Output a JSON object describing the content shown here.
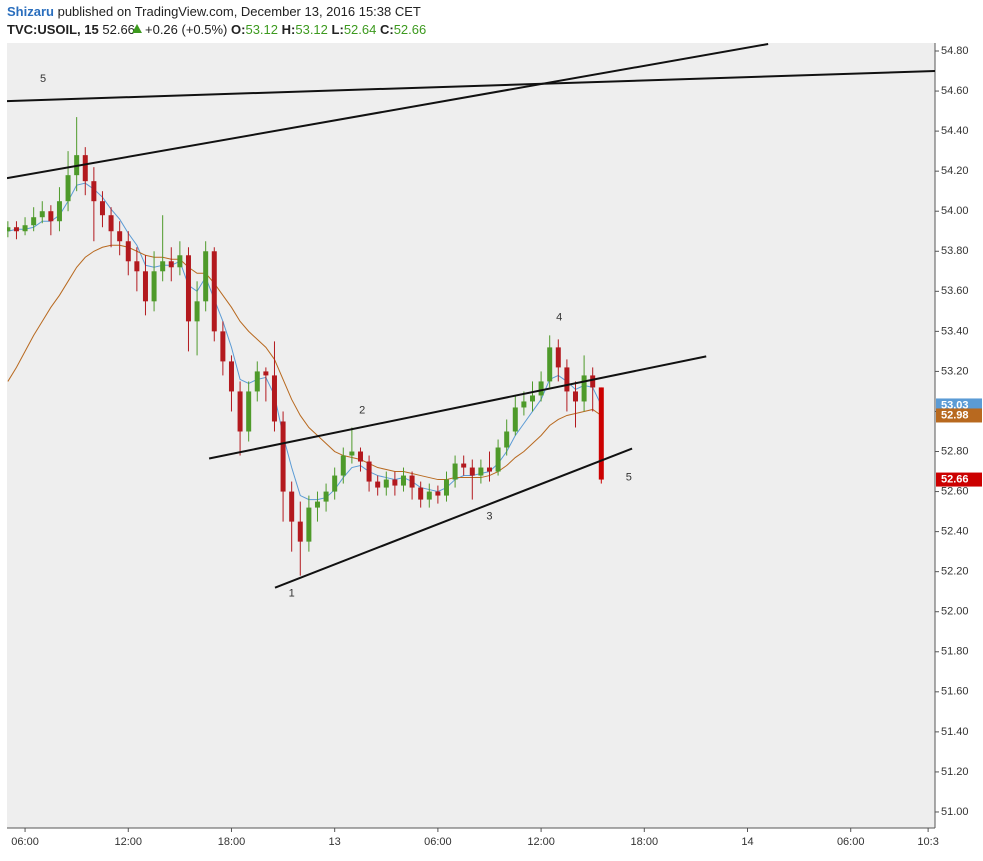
{
  "header": {
    "author": "Shizaru",
    "published": "published on TradingView.com, December 13, 2016 15:38 CET",
    "symbol": "TVC:USOIL, 15",
    "last": "52.66",
    "change": "+0.26 (+0.5%)",
    "o_label": "O:",
    "o": "53.12",
    "h_label": "H:",
    "h": "53.12",
    "l_label": "L:",
    "l": "52.64",
    "c_label": "C:",
    "c": "52.66"
  },
  "chart_data": {
    "type": "candlestick",
    "x": [
      5,
      5.5,
      6,
      6.5,
      7,
      7.5,
      8,
      8.5,
      9,
      9.5,
      10,
      10.5,
      11,
      11.5,
      12,
      12.5,
      13,
      13.5,
      14,
      14.5,
      15,
      15.5,
      16,
      16.5,
      17,
      17.5,
      18,
      18.5,
      19,
      19.5,
      20,
      20.5,
      21,
      21.5,
      22,
      22.5,
      23,
      23.5,
      24,
      24.5,
      25,
      25.5,
      26,
      26.5,
      27,
      27.5,
      28,
      28.5,
      29,
      29.5,
      30,
      30.5,
      31,
      31.5,
      32,
      32.5,
      33,
      33.5,
      34,
      34.5,
      35,
      35.5,
      36,
      36.5,
      37,
      37.5,
      38,
      38.5,
      39,
      39.5
    ],
    "open": [
      53.9,
      53.92,
      53.9,
      53.93,
      53.97,
      54.0,
      53.95,
      54.05,
      54.18,
      54.28,
      54.15,
      54.05,
      53.98,
      53.9,
      53.85,
      53.75,
      53.7,
      53.55,
      53.7,
      53.75,
      53.72,
      53.78,
      53.45,
      53.55,
      53.8,
      53.4,
      53.25,
      53.1,
      52.9,
      53.1,
      53.2,
      53.18,
      52.95,
      52.6,
      52.45,
      52.35,
      52.52,
      52.55,
      52.6,
      52.68,
      52.78,
      52.8,
      52.75,
      52.65,
      52.62,
      52.66,
      52.63,
      52.68,
      52.62,
      52.56,
      52.6,
      52.58,
      52.66,
      52.74,
      52.72,
      52.68,
      52.72,
      52.7,
      52.82,
      52.9,
      53.02,
      53.05,
      53.08,
      53.15,
      53.32,
      53.22,
      53.1,
      53.05,
      53.18,
      53.12
    ],
    "high": [
      53.95,
      53.95,
      53.97,
      54.02,
      54.05,
      54.03,
      54.12,
      54.3,
      54.47,
      54.32,
      54.22,
      54.1,
      54.02,
      53.95,
      53.9,
      53.82,
      53.78,
      53.8,
      53.98,
      53.82,
      53.85,
      53.82,
      53.65,
      53.85,
      53.82,
      53.45,
      53.28,
      53.15,
      53.15,
      53.25,
      53.22,
      53.35,
      53.0,
      52.65,
      52.55,
      52.58,
      52.6,
      52.64,
      52.72,
      52.82,
      52.92,
      52.82,
      52.78,
      52.68,
      52.7,
      52.7,
      52.72,
      52.7,
      52.65,
      52.64,
      52.63,
      52.7,
      52.78,
      52.78,
      52.76,
      52.76,
      52.8,
      52.86,
      52.96,
      53.08,
      53.1,
      53.15,
      53.2,
      53.38,
      53.36,
      53.26,
      53.15,
      53.28,
      53.22,
      53.12
    ],
    "low": [
      53.87,
      53.86,
      53.88,
      53.9,
      53.94,
      53.88,
      53.9,
      54.0,
      54.1,
      54.08,
      53.85,
      53.92,
      53.82,
      53.78,
      53.68,
      53.6,
      53.48,
      53.5,
      53.65,
      53.65,
      53.68,
      53.3,
      53.28,
      53.5,
      53.35,
      53.18,
      53.0,
      52.78,
      52.85,
      53.05,
      53.05,
      52.9,
      52.45,
      52.3,
      52.18,
      52.3,
      52.45,
      52.5,
      52.56,
      52.64,
      52.74,
      52.7,
      52.6,
      52.58,
      52.58,
      52.58,
      52.6,
      52.56,
      52.52,
      52.52,
      52.54,
      52.55,
      52.62,
      52.68,
      52.56,
      52.64,
      52.65,
      52.68,
      52.78,
      52.88,
      52.98,
      53.0,
      53.05,
      53.12,
      53.15,
      53.0,
      52.92,
      53.0,
      53.0,
      52.64
    ],
    "close": [
      53.92,
      53.9,
      53.93,
      53.97,
      54.0,
      53.95,
      54.05,
      54.18,
      54.28,
      54.15,
      54.05,
      53.98,
      53.9,
      53.85,
      53.75,
      53.7,
      53.55,
      53.7,
      53.75,
      53.72,
      53.78,
      53.45,
      53.55,
      53.8,
      53.4,
      53.25,
      53.1,
      52.9,
      53.1,
      53.2,
      53.18,
      52.95,
      52.6,
      52.45,
      52.35,
      52.52,
      52.55,
      52.6,
      52.68,
      52.78,
      52.8,
      52.75,
      52.65,
      52.62,
      52.66,
      52.63,
      52.68,
      52.62,
      52.56,
      52.6,
      52.58,
      52.66,
      52.74,
      52.72,
      52.68,
      52.72,
      52.7,
      52.82,
      52.9,
      53.02,
      53.05,
      53.08,
      53.15,
      53.32,
      53.22,
      53.1,
      53.05,
      53.18,
      53.12,
      52.66
    ],
    "up_color": "#4e9a2a",
    "down_color": "#b3191e",
    "last_color": "#cc0000",
    "series": [
      {
        "color": "#5b9bd5",
        "values": [
          53.9,
          53.91,
          53.91,
          53.92,
          53.95,
          53.95,
          53.98,
          54.05,
          54.13,
          54.14,
          54.11,
          54.07,
          54.01,
          53.96,
          53.89,
          53.83,
          53.73,
          53.72,
          53.73,
          53.73,
          53.75,
          53.63,
          53.6,
          53.67,
          53.56,
          53.45,
          53.32,
          53.16,
          53.14,
          53.16,
          53.17,
          53.08,
          52.88,
          52.72,
          52.58,
          52.56,
          52.56,
          52.57,
          52.61,
          52.67,
          52.72,
          52.73,
          52.7,
          52.68,
          52.67,
          52.66,
          52.67,
          52.65,
          52.62,
          52.61,
          52.6,
          52.62,
          52.66,
          52.68,
          52.68,
          52.69,
          52.7,
          52.74,
          52.8,
          52.88,
          52.94,
          53.0,
          53.06,
          53.16,
          53.18,
          53.15,
          53.11,
          53.13,
          53.12,
          53.03
        ]
      },
      {
        "color": "#b8691f",
        "values": [
          53.15,
          53.22,
          53.3,
          53.38,
          53.45,
          53.52,
          53.58,
          53.65,
          53.72,
          53.77,
          53.8,
          53.82,
          53.83,
          53.83,
          53.82,
          53.8,
          53.78,
          53.77,
          53.77,
          53.76,
          53.76,
          53.72,
          53.69,
          53.69,
          53.64,
          53.58,
          53.52,
          53.45,
          53.4,
          53.36,
          53.32,
          53.26,
          53.16,
          53.06,
          52.98,
          52.92,
          52.88,
          52.84,
          52.8,
          52.78,
          52.77,
          52.76,
          52.74,
          52.72,
          52.71,
          52.7,
          52.7,
          52.69,
          52.68,
          52.67,
          52.66,
          52.66,
          52.67,
          52.67,
          52.67,
          52.67,
          52.68,
          52.7,
          52.73,
          52.77,
          52.8,
          52.84,
          52.88,
          52.93,
          52.96,
          52.98,
          52.99,
          53.0,
          53.01,
          52.98
        ]
      }
    ],
    "trendlines": [
      {
        "x": [
          4.95,
          49.2
        ],
        "y": [
          54.165,
          54.835
        ]
      },
      {
        "x": [
          4.95,
          58.9
        ],
        "y": [
          54.55,
          54.7
        ]
      },
      {
        "x": [
          16.7,
          45.6
        ],
        "y": [
          52.765,
          53.275
        ]
      },
      {
        "x": [
          20.53,
          41.29
        ],
        "y": [
          52.12,
          52.815
        ]
      }
    ],
    "annotations": [
      {
        "text": "5",
        "x": 7.05,
        "y": 54.66
      },
      {
        "text": "2",
        "x": 25.6,
        "y": 53.005
      },
      {
        "text": "4",
        "x": 37.05,
        "y": 53.47
      },
      {
        "text": "3",
        "x": 33.0,
        "y": 52.475
      },
      {
        "text": "1",
        "x": 21.5,
        "y": 52.09
      },
      {
        "text": "5",
        "x": 41.1,
        "y": 52.67
      }
    ],
    "xlim": [
      4.95,
      58.9
    ],
    "xticks": [
      {
        "value": 6,
        "label": "06:00"
      },
      {
        "value": 12,
        "label": "12:00"
      },
      {
        "value": 18,
        "label": "18:00"
      },
      {
        "value": 24,
        "label": "13"
      },
      {
        "value": 30,
        "label": "06:00"
      },
      {
        "value": 36,
        "label": "12:00"
      },
      {
        "value": 42,
        "label": "18:00"
      },
      {
        "value": 48,
        "label": "14"
      },
      {
        "value": 54,
        "label": "06:00"
      },
      {
        "value": 58.5,
        "label": "10:3"
      }
    ],
    "ylim": [
      50.92,
      54.84
    ],
    "yticks": [
      {
        "value": 51,
        "label": "51.00"
      },
      {
        "value": 51.2,
        "label": "51.20"
      },
      {
        "value": 51.4,
        "label": "51.40"
      },
      {
        "value": 51.6,
        "label": "51.60"
      },
      {
        "value": 51.8,
        "label": "51.80"
      },
      {
        "value": 52,
        "label": "52.00"
      },
      {
        "value": 52.2,
        "label": "52.20"
      },
      {
        "value": 52.4,
        "label": "52.40"
      },
      {
        "value": 52.6,
        "label": "52.60"
      },
      {
        "value": 52.8,
        "label": "52.80"
      },
      {
        "value": 53,
        "label": "53.00"
      },
      {
        "value": 53.2,
        "label": "53.20"
      },
      {
        "value": 53.4,
        "label": "53.40"
      },
      {
        "value": 53.6,
        "label": "53.60"
      },
      {
        "value": 53.8,
        "label": "53.80"
      },
      {
        "value": 54,
        "label": "54.00"
      },
      {
        "value": 54.2,
        "label": "54.20"
      },
      {
        "value": 54.4,
        "label": "54.40"
      },
      {
        "value": 54.6,
        "label": "54.60"
      },
      {
        "value": 54.8,
        "label": "54.80"
      }
    ],
    "grid": false
  }
}
